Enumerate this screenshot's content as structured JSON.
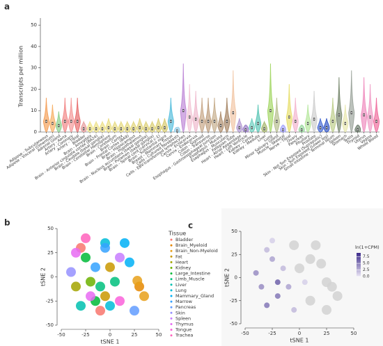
{
  "chart_data": [
    {
      "type": "violin",
      "panel": "a",
      "ylabel": "Transcripts per million",
      "ylim": [
        0,
        52
      ],
      "yticks": [
        0,
        10,
        20,
        30,
        40,
        50
      ],
      "categories": [
        "Adipose - Subcutaneous",
        "Adipose - Visceral (Omentum)",
        "Adrenal Gland",
        "Artery - Aorta",
        "Artery - Coronary",
        "Artery - Tibial",
        "Bladder",
        "Brain - Amygdala",
        "Brain - Anterior cingulate cortex (BA24)",
        "Brain - Caudate (basal ganglia)",
        "Brain - Cerebellar Hemisphere",
        "Brain - Cerebellum",
        "Brain - Cortex",
        "Brain - Frontal Cortex (BA9)",
        "Brain - Hippocampus",
        "Brain - Hypothalamus",
        "Brain - Nucleus accumbens (basal ganglia)",
        "Brain - Putamen (basal ganglia)",
        "Brain - Spinal cord (cervical c-1)",
        "Brain - Substantia nigra",
        "Breast - Mammary Tissue",
        "Cells - Cultured fibroblasts",
        "Cells - EBV-transformed lymphocytes",
        "Cervix - Ectocervix",
        "Cervix - Endocervix",
        "Colon - Sigmoid",
        "Colon - Transverse",
        "Esophagus - Gastroesophageal Junction",
        "Esophagus - Mucosa",
        "Esophagus - Muscularis",
        "Fallopian Tube",
        "Heart - Atrial Appendage",
        "Heart - Left Ventricle",
        "Kidney - Cortex",
        "Kidney - Medulla",
        "Liver",
        "Lung",
        "Minor Salivary Gland",
        "Muscle - Skeletal",
        "Nerve - Tibial",
        "Ovary",
        "Pancreas",
        "Pituitary",
        "Prostate",
        "Skin - Not Sun Exposed (Suprapubic)",
        "Skin - Sun Exposed (Lower leg)",
        "Small Intestine - Terminal Ileum",
        "Spleen",
        "Stomach",
        "Testis",
        "Thyroid",
        "Uterus",
        "Vagina",
        "Whole Blood"
      ],
      "values": [
        5,
        4,
        3,
        5,
        5,
        5,
        1.5,
        1.5,
        1.5,
        1.5,
        2,
        1.5,
        1.5,
        1.5,
        1.5,
        2,
        1.5,
        1.5,
        2,
        2,
        5,
        0.5,
        10,
        7,
        6,
        5,
        5,
        5,
        3,
        5,
        9,
        2,
        1,
        2,
        4,
        1.5,
        10,
        5,
        1,
        7,
        5,
        1,
        4,
        6,
        2,
        2,
        5,
        8,
        4,
        9,
        1,
        8,
        7,
        5
      ],
      "colors": [
        "#f5a25d",
        "#f7b26a",
        "#8fd18f",
        "#f28a8a",
        "#f59a9a",
        "#e86f6f",
        "#e8a0a0",
        "#f0e68c",
        "#eee28a",
        "#ece088",
        "#eade86",
        "#e8dc84",
        "#e6da82",
        "#e4d880",
        "#e2d67e",
        "#e0d47c",
        "#ded27a",
        "#dcd078",
        "#dace76",
        "#d8cc74",
        "#5bc0de",
        "#9ad0e8",
        "#c08bd8",
        "#f3c6d6",
        "#f0bccf",
        "#c9a98a",
        "#bfa080",
        "#c8b090",
        "#b09070",
        "#a88868",
        "#f2c8a8",
        "#b49bd4",
        "#9b7fc8",
        "#6fd0c0",
        "#5fc8b8",
        "#a8b870",
        "#a6d86a",
        "#b8c090",
        "#a6a6ff",
        "#e8e070",
        "#f4b8d0",
        "#9ad8a0",
        "#b8e8a0",
        "#d0d0d0",
        "#4b6ed6",
        "#3a5cc8",
        "#c0d090",
        "#7a8a70",
        "#e8e8b0",
        "#a0a8a0",
        "#708070",
        "#f090c0",
        "#f0a0c8",
        "#f070a0"
      ]
    },
    {
      "type": "scatter",
      "panel": "b",
      "xlabel": "tSNE 1",
      "ylabel": "tSNE 2",
      "legend_title": "Tissue",
      "xlim": [
        -50,
        50
      ],
      "xticks": [
        -50,
        -25,
        0,
        25,
        50
      ],
      "ylim": [
        -50,
        50
      ],
      "yticks": [
        -50,
        -25,
        0,
        25,
        50
      ],
      "series": [
        {
          "name": "Bladder",
          "color": "#f8766d",
          "x": [
            -30,
            -10
          ],
          "y": [
            30,
            -35
          ]
        },
        {
          "name": "Brain_Myeloid",
          "color": "#e58700",
          "x": [
            30
          ],
          "y": [
            -10
          ]
        },
        {
          "name": "Brain_Non-Myeloid",
          "color": "#e8a01a",
          "x": [
            35,
            28
          ],
          "y": [
            -20,
            -4
          ]
        },
        {
          "name": "Fat",
          "color": "#c99800",
          "x": [
            0,
            -5
          ],
          "y": [
            10,
            -20
          ]
        },
        {
          "name": "Heart",
          "color": "#a3a500",
          "x": [
            -35
          ],
          "y": [
            -10
          ]
        },
        {
          "name": "Kidney",
          "color": "#6bb100",
          "x": [
            -20
          ],
          "y": [
            -5
          ]
        },
        {
          "name": "Large_Intestine",
          "color": "#00ba38",
          "x": [
            -25,
            -15
          ],
          "y": [
            20,
            -25
          ]
        },
        {
          "name": "Limb_Muscle",
          "color": "#00bf7d",
          "x": [
            5,
            -10
          ],
          "y": [
            -5,
            -10
          ]
        },
        {
          "name": "Liver",
          "color": "#00c0af",
          "x": [
            -30
          ],
          "y": [
            -30
          ]
        },
        {
          "name": "Lung",
          "color": "#00bcd8",
          "x": [
            -5,
            0
          ],
          "y": [
            35,
            -30
          ]
        },
        {
          "name": "Mammary_Gland",
          "color": "#00b0f6",
          "x": [
            15,
            20
          ],
          "y": [
            35,
            15
          ]
        },
        {
          "name": "Marrow",
          "color": "#35a2ff",
          "x": [
            -15,
            -5
          ],
          "y": [
            10,
            30
          ]
        },
        {
          "name": "Pancreas",
          "color": "#619cff",
          "x": [
            25
          ],
          "y": [
            -35
          ]
        },
        {
          "name": "Skin",
          "color": "#9590ff",
          "x": [
            -40
          ],
          "y": [
            5
          ]
        },
        {
          "name": "Spleen",
          "color": "#c77cff",
          "x": [
            10
          ],
          "y": [
            20
          ]
        },
        {
          "name": "Thymus",
          "color": "#e76bf3",
          "x": [
            -35,
            -20
          ],
          "y": [
            25,
            -20
          ]
        },
        {
          "name": "Tongue",
          "color": "#fa62db",
          "x": [
            10
          ],
          "y": [
            -25
          ]
        },
        {
          "name": "Trachea",
          "color": "#ff62bc",
          "x": [
            -25
          ],
          "y": [
            40
          ]
        }
      ]
    },
    {
      "type": "scatter",
      "panel": "c",
      "xlabel": "tSNE 1",
      "ylabel": "tSNE 2",
      "colorbar_title": "ln(1+CPM)",
      "xlim": [
        -50,
        50
      ],
      "xticks": [
        -50,
        -25,
        0,
        25,
        50
      ],
      "ylim": [
        -50,
        50
      ],
      "yticks": [
        -50,
        -25,
        0,
        25,
        50
      ],
      "colorscale": [
        "#ebe6f5",
        "#3b2a8a"
      ],
      "zero_color": "#d4d4d4",
      "clim": [
        0,
        9
      ],
      "cticks": [
        {
          "value": 0,
          "label": "0.0"
        },
        {
          "value": 2.5,
          "label": "2.5"
        },
        {
          "value": 5,
          "label": "5.0"
        },
        {
          "value": 7.5,
          "label": "7.5"
        }
      ],
      "x": [
        30,
        35,
        25,
        0,
        10,
        15,
        20,
        -5,
        10,
        25,
        -25,
        -15,
        -30,
        -35,
        -20,
        -10,
        -40,
        -30,
        -20,
        -5,
        5,
        -25
      ],
      "y": [
        -10,
        -20,
        -5,
        10,
        20,
        35,
        15,
        35,
        -25,
        -35,
        20,
        10,
        -30,
        -10,
        -5,
        -10,
        5,
        30,
        -20,
        -35,
        -5,
        40
      ],
      "values": [
        0,
        0,
        0,
        0,
        0,
        0,
        0,
        0,
        0,
        0,
        3,
        2,
        5,
        4,
        6,
        3,
        4,
        2,
        5,
        2,
        1,
        1
      ]
    }
  ]
}
